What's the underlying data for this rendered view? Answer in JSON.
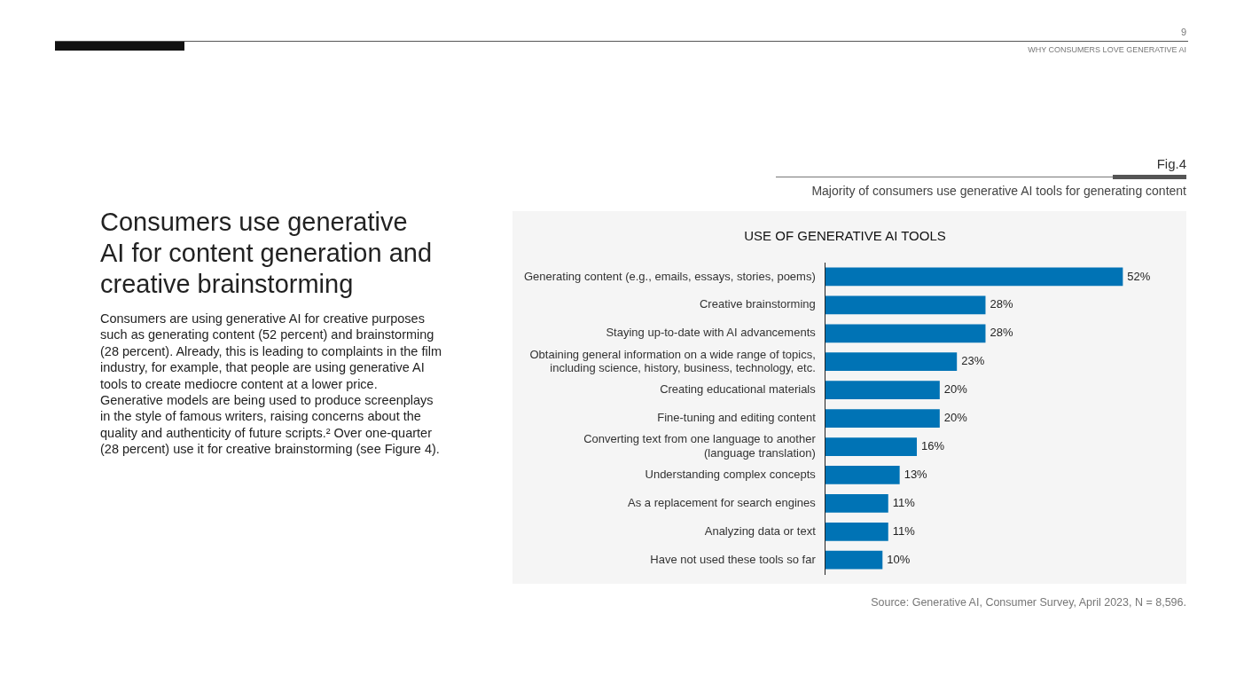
{
  "chart_data": {
    "type": "bar",
    "orientation": "horizontal",
    "title": "USE OF GENERATIVE AI TOOLS",
    "subtitle": "Majority of consumers use generative AI tools for generating content",
    "categories": [
      "Generating content (e.g., emails, essays, stories, poems)",
      "Creative brainstorming",
      "Staying up-to-date with AI advancements",
      "Obtaining general information on a wide range of topics,\nincluding science, history, business, technology, etc.",
      "Creating educational materials",
      "Fine-tuning and editing content",
      "Converting text from one language to another\n(language translation)",
      "Understanding complex concepts",
      "As a replacement for search engines",
      "Analyzing data or text",
      "Have not used these tools so far"
    ],
    "values": [
      52,
      28,
      28,
      23,
      20,
      20,
      16,
      13,
      11,
      11,
      10
    ],
    "value_labels": [
      "52%",
      "28%",
      "28%",
      "23%",
      "20%",
      "20%",
      "16%",
      "13%",
      "11%",
      "11%",
      "10%"
    ],
    "color": "#0073b5",
    "legend": false,
    "tick_labels": "y",
    "annotations": [
      "9",
      "WHY CONSUMERS LOVE GENERATIVE AI",
      "Fig.4",
      "Consumers use generative AI for content generation and creative brainstorming",
      "Consumers are using generative AI for creative purposes such as generating content (52 percent) and brainstorming (28 percent). Already, this is leading to complaints in the film industry, for example, that people are using generative AI tools to create mediocre content at a lower price. Generative models are being used to produce screenplays in the style of famous writers, raising concerns about the quality and authenticity of future scripts.² Over one-quarter (28 percent) use it for creative brainstorming (see Figure 4).",
      "Source: Generative AI, Consumer Survey, April 2023, N = 8,596."
    ]
  }
}
